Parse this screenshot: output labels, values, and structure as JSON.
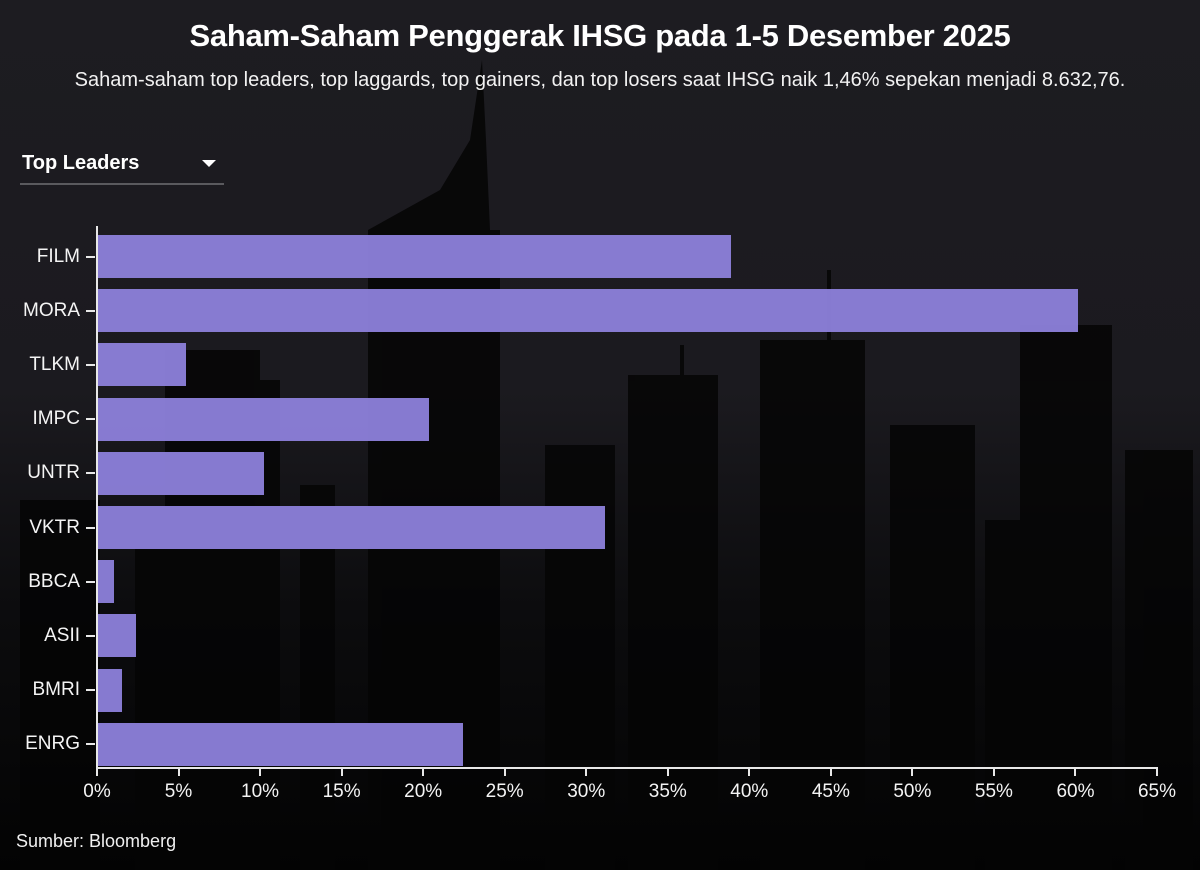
{
  "header": {
    "title": "Saham-Saham Penggerak IHSG pada 1-5 Desember 2025",
    "subtitle": "Saham-saham top leaders, top laggards, top gainers, dan top losers saat IHSG naik 1,46% sepekan menjadi 8.632,76."
  },
  "dropdown": {
    "selected": "Top Leaders",
    "icon": "caret-down-icon"
  },
  "footer": {
    "source": "Sumber: Bloomberg"
  },
  "colors": {
    "bar": "#8b7fd9",
    "background": "#1c1b20",
    "text": "#ffffff"
  },
  "chart_data": {
    "type": "bar",
    "orientation": "horizontal",
    "title": "Saham-Saham Penggerak IHSG pada 1-5 Desember 2025",
    "subtitle": "Saham-saham top leaders, top laggards, top gainers, dan top losers saat IHSG naik 1,46% sepekan menjadi 8.632,76.",
    "filter": "Top Leaders",
    "categories": [
      "FILM",
      "MORA",
      "TLKM",
      "IMPC",
      "UNTR",
      "VKTR",
      "BBCA",
      "ASII",
      "BMRI",
      "ENRG"
    ],
    "values": [
      38.8,
      60.1,
      5.4,
      20.3,
      10.2,
      31.1,
      1.0,
      2.3,
      1.5,
      22.4
    ],
    "unit": "%",
    "xlabel": "",
    "ylabel": "",
    "xlim": [
      0,
      65
    ],
    "xticks": [
      "0%",
      "5%",
      "10%",
      "15%",
      "20%",
      "25%",
      "30%",
      "35%",
      "40%",
      "45%",
      "50%",
      "55%",
      "60%",
      "65%"
    ],
    "grid": false,
    "legend": "none",
    "source": "Sumber: Bloomberg"
  }
}
